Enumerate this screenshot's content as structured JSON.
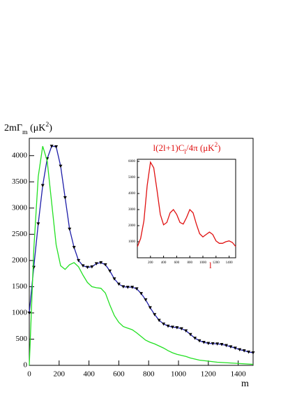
{
  "chart_data": [
    {
      "type": "line",
      "y_label": [
        {
          "text": "2mΓ"
        },
        {
          "text": "m",
          "pos": "sub"
        },
        {
          "text": " (μK"
        },
        {
          "text": "2",
          "pos": "sup"
        },
        {
          "text": ")"
        }
      ],
      "x_label": "m",
      "xlim": [
        0,
        1500
      ],
      "ylim": [
        0,
        4330
      ],
      "xticks": [
        0,
        200,
        400,
        600,
        800,
        1000,
        1200,
        1400
      ],
      "yticks": [
        0,
        500,
        1000,
        1500,
        2000,
        2500,
        3000,
        3500,
        4000
      ],
      "x": [
        0,
        30,
        60,
        90,
        120,
        150,
        180,
        210,
        240,
        270,
        300,
        330,
        360,
        390,
        420,
        450,
        480,
        510,
        540,
        570,
        600,
        630,
        660,
        690,
        720,
        750,
        780,
        810,
        840,
        870,
        900,
        930,
        960,
        990,
        1020,
        1050,
        1080,
        1110,
        1140,
        1170,
        1200,
        1230,
        1260,
        1290,
        1320,
        1350,
        1380,
        1410,
        1440,
        1470,
        1500
      ],
      "series": [
        {
          "color": "#1c1ca8",
          "marker": "triangle-down",
          "values": [
            1000,
            1870,
            2700,
            3430,
            3940,
            4180,
            4170,
            3800,
            3200,
            2600,
            2250,
            2000,
            1900,
            1870,
            1880,
            1940,
            1960,
            1920,
            1800,
            1650,
            1550,
            1500,
            1490,
            1490,
            1460,
            1370,
            1250,
            1100,
            970,
            860,
            790,
            750,
            730,
            720,
            700,
            660,
            590,
            520,
            470,
            440,
            420,
            415,
            410,
            400,
            380,
            355,
            330,
            300,
            280,
            255,
            240
          ]
        },
        {
          "color": "#22e022",
          "values": [
            0,
            2200,
            3600,
            4180,
            3900,
            3100,
            2300,
            1900,
            1830,
            1920,
            1960,
            1880,
            1720,
            1580,
            1500,
            1480,
            1470,
            1380,
            1150,
            950,
            820,
            740,
            710,
            680,
            620,
            550,
            480,
            440,
            410,
            370,
            330,
            280,
            240,
            210,
            190,
            170,
            140,
            120,
            100,
            90,
            80,
            70,
            60,
            55,
            50,
            45,
            40,
            35,
            30,
            25,
            20
          ]
        }
      ]
    },
    {
      "type": "line",
      "title": [
        {
          "text": "l(2l+1)C"
        },
        {
          "text": "l",
          "pos": "sub"
        },
        {
          "text": "/4π (μK"
        },
        {
          "text": "2",
          "pos": "sup"
        },
        {
          "text": ")"
        }
      ],
      "title_color": "#e01010",
      "x_label": "l",
      "xlim": [
        0,
        1500
      ],
      "ylim": [
        0,
        6130
      ],
      "xticks": [
        200,
        400,
        600,
        800,
        1000,
        1200,
        1400
      ],
      "yticks": [
        1000,
        2000,
        3000,
        4000,
        5000,
        6000
      ],
      "x": [
        2,
        50,
        100,
        150,
        200,
        250,
        300,
        350,
        400,
        450,
        500,
        550,
        600,
        650,
        700,
        750,
        800,
        850,
        900,
        950,
        1000,
        1050,
        1100,
        1150,
        1200,
        1250,
        1300,
        1350,
        1400,
        1450,
        1500
      ],
      "series": [
        {
          "color": "#e01010",
          "values": [
            700,
            1200,
            2300,
            4500,
            5950,
            5600,
            4200,
            2700,
            2050,
            2200,
            2800,
            3000,
            2700,
            2200,
            2100,
            2500,
            3000,
            2800,
            2100,
            1500,
            1300,
            1450,
            1600,
            1450,
            1050,
            900,
            900,
            1000,
            1050,
            950,
            700
          ]
        }
      ]
    }
  ]
}
